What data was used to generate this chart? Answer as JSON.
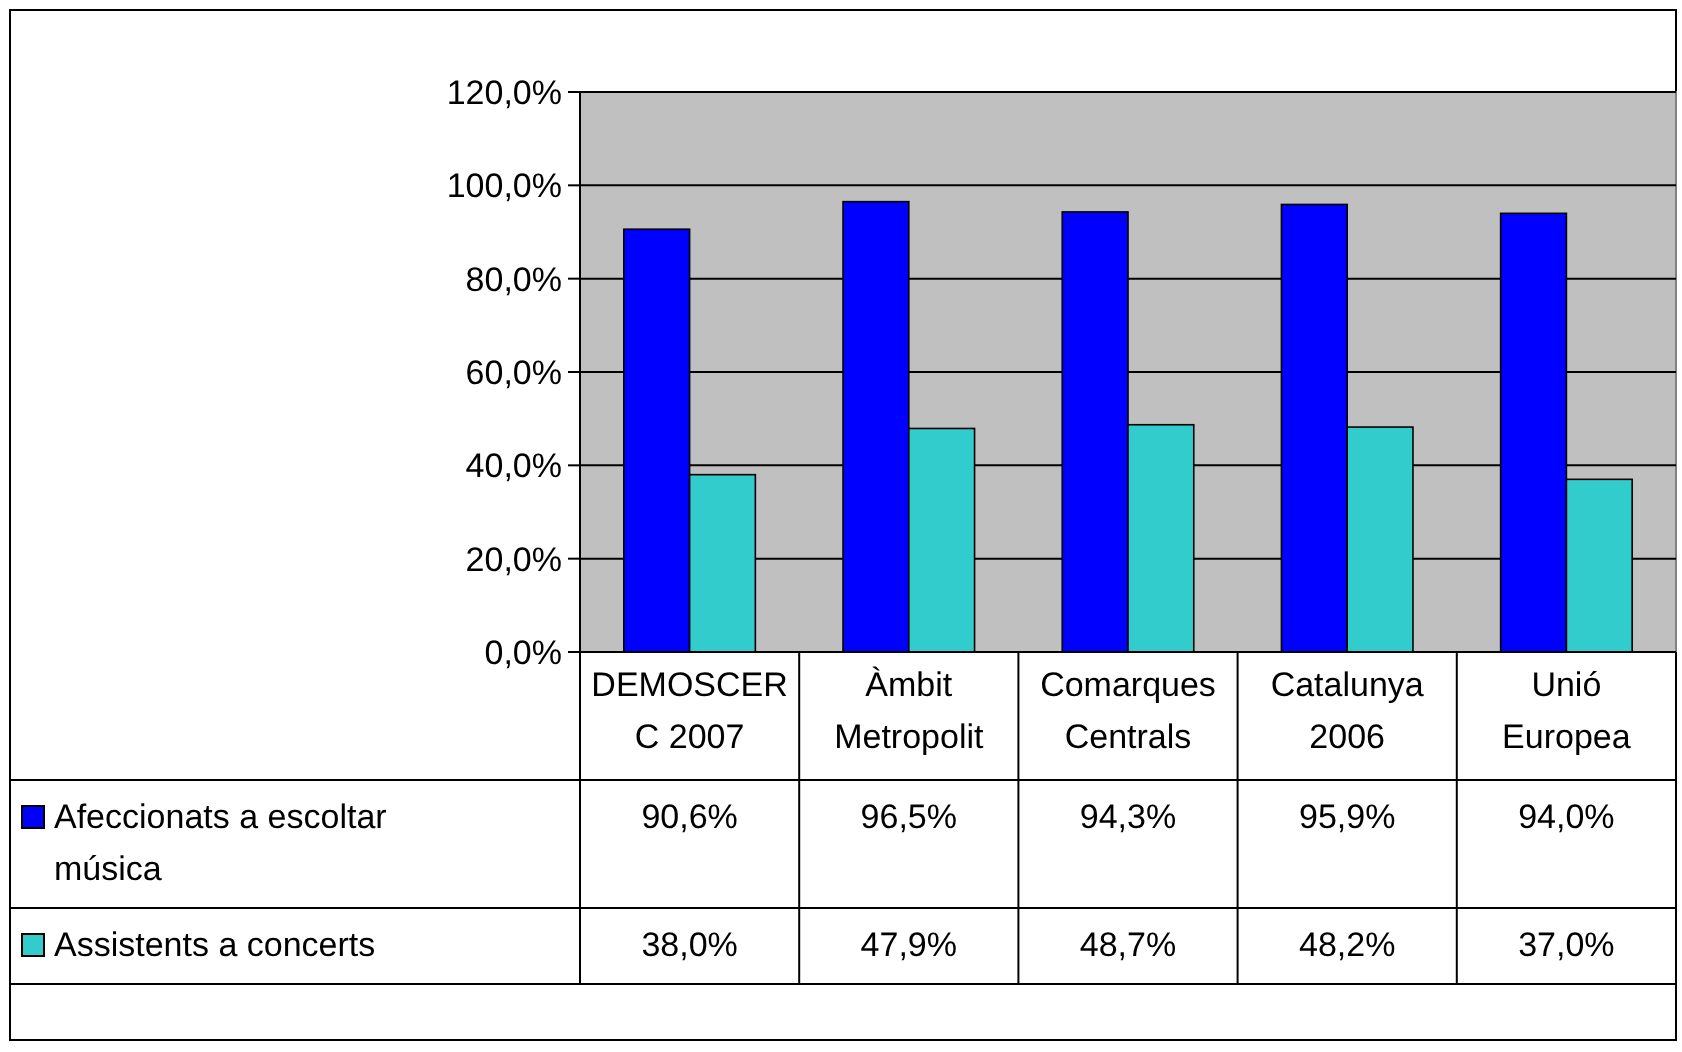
{
  "chart_data": {
    "type": "bar",
    "categories": [
      "DEMOSCERC 2007",
      "Àmbit Metropolit",
      "Comarques Centrals",
      "Catalunya 2006",
      "Unió Europea"
    ],
    "series": [
      {
        "name": "Afeccionats a escoltar música",
        "color": "#0000ff",
        "values": [
          90.6,
          96.5,
          94.3,
          95.9,
          94.0
        ],
        "value_labels": [
          "90,6%",
          "96,5%",
          "94,3%",
          "95,9%",
          "94,0%"
        ]
      },
      {
        "name": "Assistents a concerts",
        "color": "#33cccc",
        "values": [
          38.0,
          47.9,
          48.7,
          48.2,
          37.0
        ],
        "value_labels": [
          "38,0%",
          "47,9%",
          "48,7%",
          "48,2%",
          "37,0%"
        ]
      }
    ],
    "ylim": [
      0,
      120
    ],
    "yticks": [
      {
        "value": 0,
        "label": "0,0%"
      },
      {
        "value": 20,
        "label": "20,0%"
      },
      {
        "value": 40,
        "label": "40,0%"
      },
      {
        "value": 60,
        "label": "60,0%"
      },
      {
        "value": 80,
        "label": "80,0%"
      },
      {
        "value": 100,
        "label": "100,0%"
      },
      {
        "value": 120,
        "label": "120,0%"
      }
    ],
    "grid": "y",
    "legend": "bottom left"
  }
}
